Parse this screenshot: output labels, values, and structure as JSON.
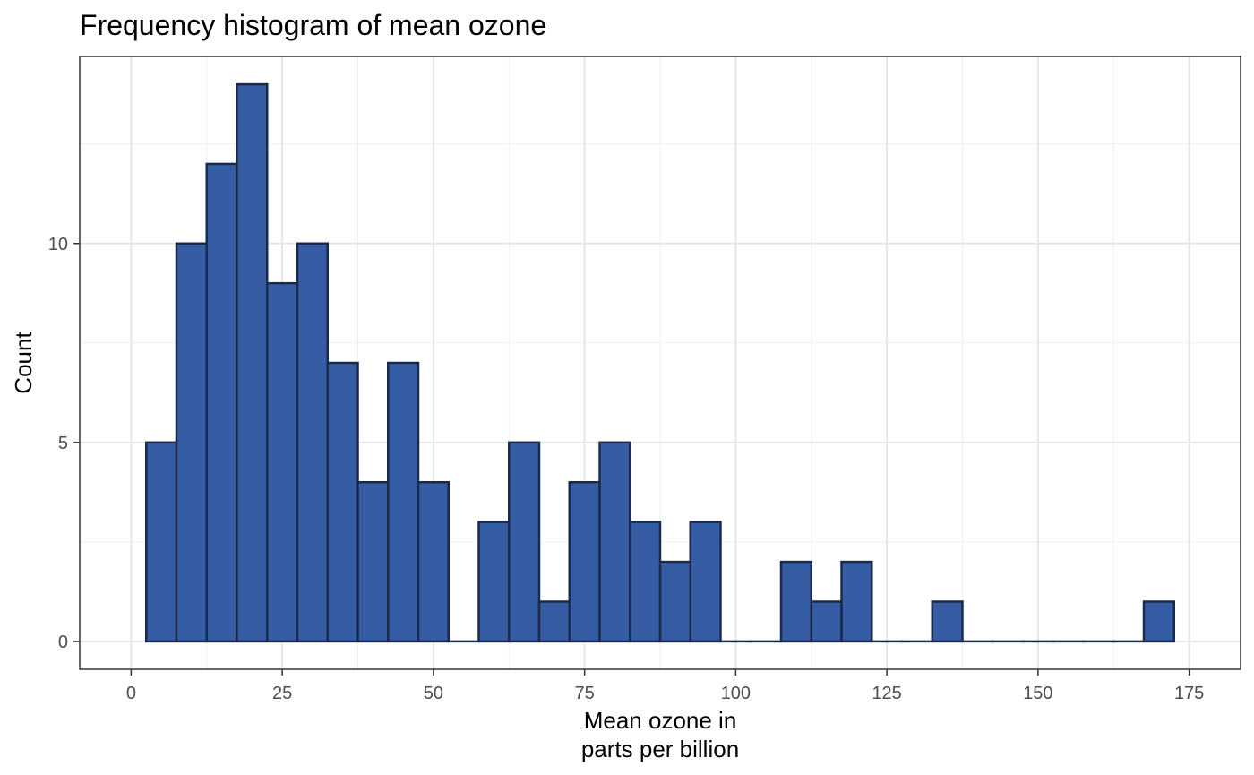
{
  "chart_data": {
    "type": "bar",
    "title": "Frequency histogram of mean ozone",
    "xlabel": [
      "Mean ozone in",
      "parts per billion"
    ],
    "ylabel": "Count",
    "binwidth": 5,
    "bin_starts": [
      2.5,
      7.5,
      12.5,
      17.5,
      22.5,
      27.5,
      32.5,
      37.5,
      42.5,
      47.5,
      52.5,
      57.5,
      62.5,
      67.5,
      72.5,
      77.5,
      82.5,
      87.5,
      92.5,
      97.5,
      102.5,
      107.5,
      112.5,
      117.5,
      122.5,
      127.5,
      132.5,
      137.5,
      142.5,
      147.5,
      152.5,
      157.5,
      162.5,
      167.5
    ],
    "counts": [
      5,
      10,
      12,
      14,
      9,
      10,
      7,
      4,
      7,
      4,
      0,
      3,
      5,
      1,
      4,
      5,
      3,
      2,
      3,
      0,
      0,
      2,
      1,
      2,
      0,
      0,
      1,
      0,
      0,
      0,
      0,
      0,
      0,
      1
    ],
    "xlim": [
      -8.5,
      183.5
    ],
    "ylim": [
      -0.7,
      14.7
    ],
    "x_ticks": [
      0,
      25,
      50,
      75,
      100,
      125,
      150,
      175
    ],
    "y_ticks": [
      0,
      5,
      10
    ],
    "grid": true,
    "colors": {
      "fill": "#365da3",
      "outline": "#1a2a4a"
    }
  }
}
